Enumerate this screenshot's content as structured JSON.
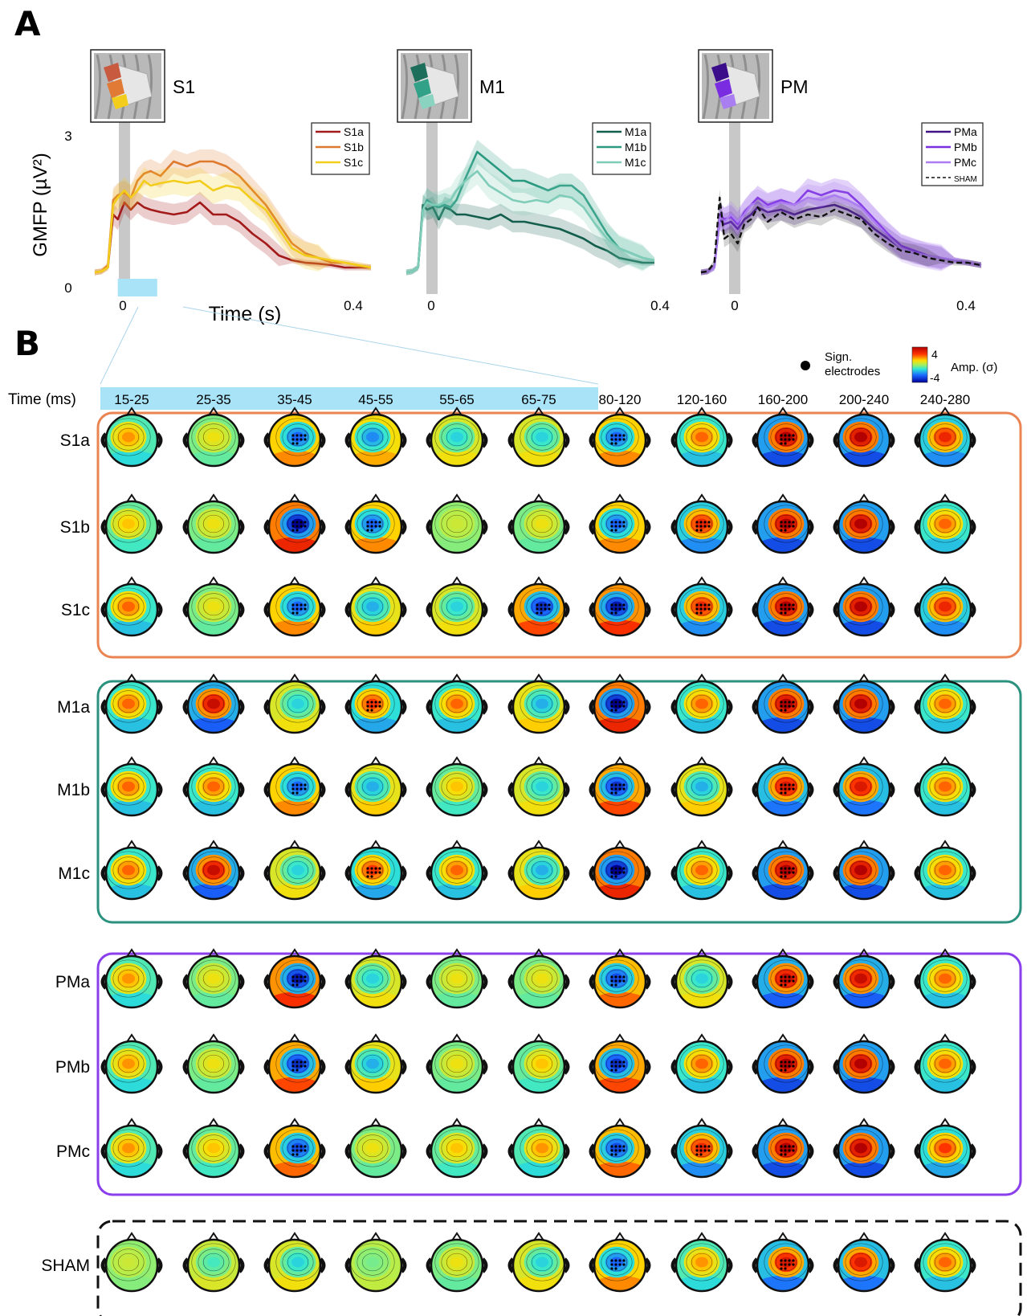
{
  "panel_labels": {
    "a": "A",
    "b": "B"
  },
  "colors": {
    "shade": "#c8c8c8",
    "time_window": "#a9e3f7",
    "S1": [
      "#a31a1a",
      "#de7a2d",
      "#f2cd1b"
    ],
    "M1": [
      "#135e4c",
      "#299980",
      "#7fccb8"
    ],
    "PM": [
      "#3f1287",
      "#7c2fe0",
      "#ab7df0"
    ],
    "sham": "#111111",
    "box_S1": "#ea8553",
    "box_M1": "#2c9280",
    "box_PM": "#8b3fec",
    "box_SHAM": "#111111"
  },
  "chart_data": [
    {
      "type": "line",
      "title": "S1",
      "ylabel": "GMFP (µV²)",
      "xlabel": "Time (s)",
      "ylim": [
        0,
        3
      ],
      "xlim": [
        -0.02,
        0.4
      ],
      "yticks": [
        "0",
        "3"
      ],
      "xticks": [
        "0",
        "0.4"
      ],
      "highlight_window": [
        0.015,
        0.075
      ],
      "x": [
        -0.02,
        -0.01,
        0,
        0.008,
        0.015,
        0.025,
        0.035,
        0.045,
        0.055,
        0.065,
        0.08,
        0.1,
        0.12,
        0.14,
        0.16,
        0.18,
        0.2,
        0.22,
        0.24,
        0.26,
        0.28,
        0.3,
        0.32,
        0.34,
        0.36,
        0.38,
        0.4
      ],
      "series": [
        {
          "name": "S1a",
          "values": [
            0.1,
            0.12,
            0.2,
            1.3,
            1.2,
            1.55,
            1.4,
            1.55,
            1.45,
            1.4,
            1.35,
            1.3,
            1.35,
            1.55,
            1.3,
            1.3,
            1.15,
            0.9,
            0.7,
            0.45,
            0.35,
            0.3,
            0.28,
            0.25,
            0.2,
            0.2,
            0.2
          ]
        },
        {
          "name": "S1b",
          "values": [
            0.1,
            0.12,
            0.25,
            1.6,
            1.7,
            1.75,
            1.65,
            2.0,
            2.15,
            2.2,
            2.1,
            2.4,
            2.3,
            2.4,
            2.4,
            2.3,
            2.1,
            1.8,
            1.5,
            1.1,
            0.7,
            0.5,
            0.4,
            0.3,
            0.3,
            0.25,
            0.2
          ]
        },
        {
          "name": "S1c",
          "values": [
            0.1,
            0.12,
            0.2,
            1.5,
            1.65,
            1.8,
            1.65,
            1.8,
            2.0,
            1.9,
            1.95,
            2.0,
            1.95,
            2.0,
            1.8,
            1.9,
            1.85,
            1.6,
            1.4,
            1.0,
            0.6,
            0.45,
            0.4,
            0.35,
            0.3,
            0.25,
            0.2
          ]
        }
      ]
    },
    {
      "type": "line",
      "title": "M1",
      "ylim": [
        0,
        3
      ],
      "xlim": [
        -0.02,
        0.4
      ],
      "xticks": [
        "0",
        "0.4"
      ],
      "x": [
        -0.02,
        -0.01,
        0,
        0.008,
        0.015,
        0.025,
        0.035,
        0.045,
        0.055,
        0.065,
        0.08,
        0.1,
        0.12,
        0.14,
        0.16,
        0.18,
        0.2,
        0.22,
        0.24,
        0.26,
        0.28,
        0.3,
        0.32,
        0.34,
        0.36,
        0.38,
        0.4
      ],
      "series": [
        {
          "name": "M1a",
          "values": [
            0.1,
            0.12,
            0.2,
            1.5,
            1.4,
            1.45,
            1.2,
            1.45,
            1.4,
            1.3,
            1.3,
            1.25,
            1.2,
            1.3,
            1.15,
            1.15,
            1.1,
            1.05,
            1.0,
            0.9,
            0.8,
            0.65,
            0.55,
            0.4,
            0.35,
            0.3,
            0.3
          ]
        },
        {
          "name": "M1b",
          "values": [
            0.1,
            0.12,
            0.2,
            1.4,
            1.6,
            1.5,
            1.45,
            1.5,
            1.45,
            1.6,
            2.05,
            2.6,
            2.4,
            2.2,
            2.0,
            2.0,
            1.9,
            1.8,
            1.9,
            1.9,
            1.7,
            1.3,
            0.9,
            0.6,
            0.5,
            0.4,
            0.35
          ]
        },
        {
          "name": "M1c",
          "values": [
            0.1,
            0.12,
            0.2,
            1.4,
            1.55,
            1.5,
            1.5,
            1.55,
            1.6,
            1.8,
            2.0,
            2.2,
            1.9,
            1.75,
            1.6,
            1.55,
            1.6,
            1.55,
            1.7,
            1.65,
            1.45,
            1.1,
            0.8,
            0.6,
            0.5,
            0.4,
            0.35
          ]
        }
      ]
    },
    {
      "type": "line",
      "title": "PM",
      "ylim": [
        0,
        3
      ],
      "xlim": [
        -0.02,
        0.4
      ],
      "xticks": [
        "0",
        "0.4"
      ],
      "x": [
        -0.02,
        -0.01,
        0,
        0.008,
        0.015,
        0.025,
        0.035,
        0.045,
        0.055,
        0.065,
        0.08,
        0.1,
        0.12,
        0.14,
        0.16,
        0.18,
        0.2,
        0.22,
        0.24,
        0.26,
        0.28,
        0.3,
        0.32,
        0.34,
        0.36,
        0.38,
        0.4
      ],
      "series": [
        {
          "name": "PMa",
          "values": [
            0.1,
            0.12,
            0.2,
            1.2,
            1.1,
            1.15,
            1.0,
            1.2,
            1.3,
            1.45,
            1.35,
            1.4,
            1.3,
            1.4,
            1.45,
            1.5,
            1.4,
            1.25,
            1.0,
            0.8,
            0.6,
            0.5,
            0.45,
            0.4,
            0.35,
            0.3,
            0.25
          ]
        },
        {
          "name": "PMb",
          "values": [
            0.1,
            0.12,
            0.2,
            1.3,
            1.2,
            1.25,
            1.1,
            1.35,
            1.5,
            1.65,
            1.5,
            1.6,
            1.5,
            1.8,
            1.7,
            1.8,
            1.75,
            1.5,
            1.2,
            0.9,
            0.65,
            0.55,
            0.45,
            0.4,
            0.35,
            0.3,
            0.25
          ]
        },
        {
          "name": "PMc",
          "values": [
            0.1,
            0.12,
            0.2,
            1.25,
            1.15,
            1.3,
            1.15,
            1.3,
            1.5,
            1.55,
            1.45,
            1.55,
            1.5,
            1.65,
            1.6,
            1.7,
            1.6,
            1.45,
            1.15,
            0.85,
            0.6,
            0.5,
            0.45,
            0.4,
            0.35,
            0.3,
            0.25
          ]
        },
        {
          "name": "SHAM",
          "values": [
            0.1,
            0.12,
            0.3,
            1.65,
            0.8,
            0.9,
            0.7,
            1.1,
            1.2,
            1.45,
            1.15,
            1.35,
            1.2,
            1.3,
            1.25,
            1.4,
            1.3,
            1.2,
            0.9,
            0.7,
            0.55,
            0.5,
            0.4,
            0.35,
            0.3,
            0.3,
            0.25
          ]
        }
      ]
    },
    {
      "type": "heatmap",
      "description_free": true,
      "time_label": "Time (ms)",
      "windows": [
        "15-25",
        "25-35",
        "35-45",
        "45-55",
        "55-65",
        "65-75",
        "80-120",
        "120-160",
        "160-200",
        "200-240",
        "240-280"
      ],
      "highlighted_windows": 6,
      "rows": [
        "S1a",
        "S1b",
        "S1c",
        "M1a",
        "M1b",
        "M1c",
        "PMa",
        "PMb",
        "PMc",
        "SHAM"
      ],
      "groups": [
        {
          "box": "S1",
          "rows": [
            "S1a",
            "S1b",
            "S1c"
          ]
        },
        {
          "box": "M1",
          "rows": [
            "M1a",
            "M1b",
            "M1c"
          ]
        },
        {
          "box": "PM",
          "rows": [
            "PMa",
            "PMb",
            "PMc"
          ]
        },
        {
          "box": "SHAM",
          "rows": [
            "SHAM"
          ],
          "dashed": true
        }
      ],
      "colorbar": {
        "max": "4",
        "min": "-4",
        "label": "Amp. (σ)"
      },
      "legend_marker": "Sign. electrodes",
      "amplitude_pattern": {
        "S1a": [
          0.4,
          0.2,
          -0.6,
          -0.5,
          -0.3,
          -0.3,
          -0.6,
          0.5,
          1.0,
          1.0,
          0.7
        ],
        "S1b": [
          0.3,
          0.2,
          -1.0,
          -0.6,
          0.1,
          0.2,
          -0.6,
          0.7,
          1.0,
          1.0,
          0.5
        ],
        "S1c": [
          0.5,
          0.2,
          -0.6,
          -0.4,
          -0.3,
          -0.8,
          -0.9,
          0.7,
          1.0,
          1.0,
          0.7
        ],
        "M1a": [
          0.5,
          0.9,
          -0.3,
          0.6,
          0.5,
          -0.4,
          -1.0,
          0.5,
          1.0,
          1.0,
          0.5
        ],
        "M1b": [
          0.5,
          0.5,
          -0.6,
          -0.4,
          0.3,
          -0.3,
          -0.8,
          -0.4,
          0.8,
          0.8,
          0.5
        ],
        "M1c": [
          0.5,
          0.9,
          -0.3,
          0.6,
          0.5,
          -0.4,
          -1.0,
          0.5,
          1.0,
          1.0,
          0.5
        ],
        "PMa": [
          0.4,
          0.2,
          -0.9,
          -0.3,
          0.2,
          0.2,
          -0.7,
          -0.3,
          0.9,
          0.9,
          0.5
        ],
        "PMb": [
          0.4,
          0.2,
          -0.8,
          -0.4,
          0.2,
          0.3,
          -0.8,
          0.5,
          1.0,
          1.0,
          0.5
        ],
        "PMc": [
          0.4,
          0.3,
          -0.7,
          0.2,
          0.3,
          0.4,
          -0.7,
          0.7,
          1.0,
          1.0,
          0.6
        ],
        "SHAM": [
          0.1,
          -0.2,
          -0.3,
          -0.1,
          0.2,
          -0.3,
          -0.6,
          0.4,
          0.8,
          0.8,
          0.5
        ]
      }
    }
  ]
}
